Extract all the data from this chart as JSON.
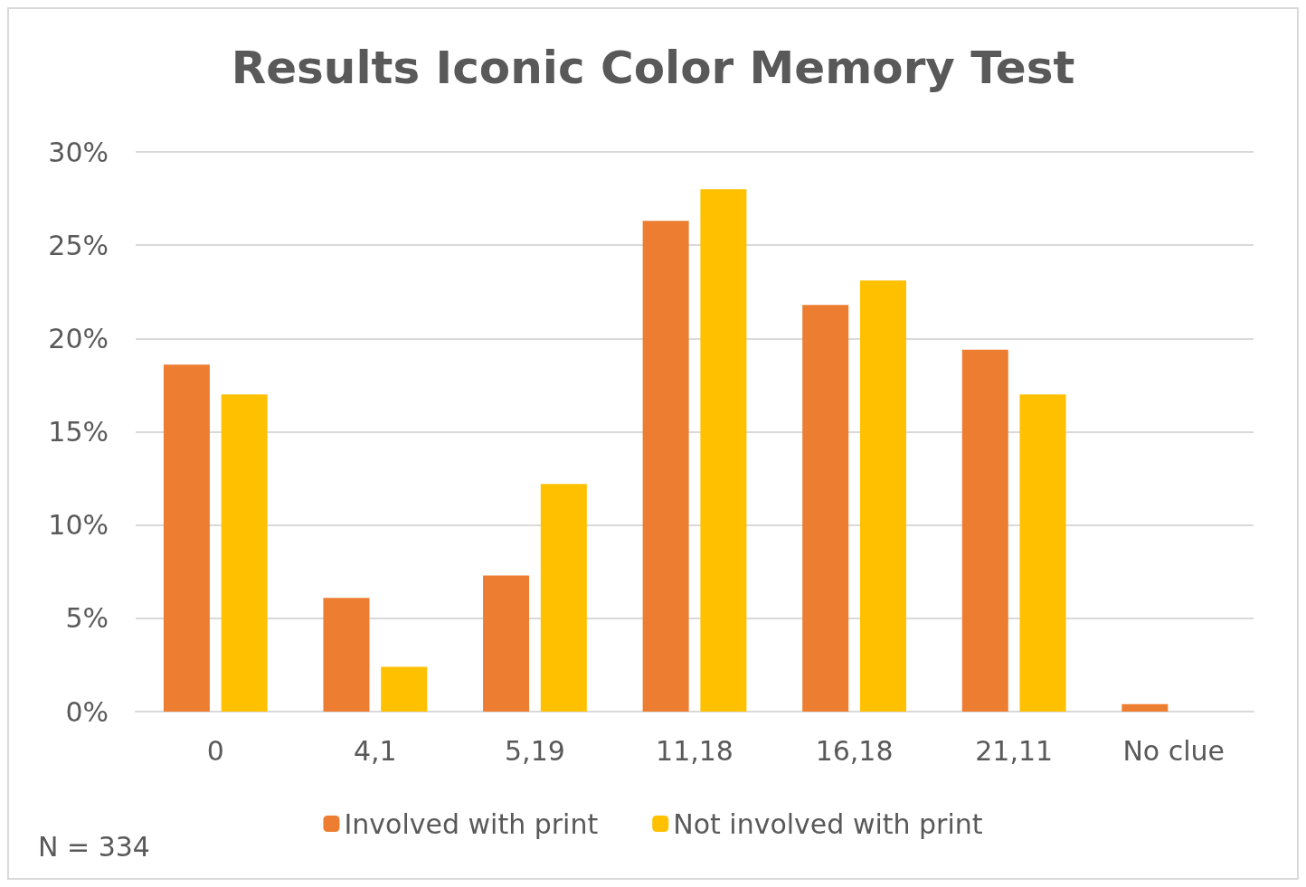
{
  "chart_data": {
    "type": "bar",
    "title": "Results Iconic Color Memory Test",
    "categories": [
      "0",
      "4,1",
      "5,19",
      "11,18",
      "16,18",
      "21,11",
      "No clue"
    ],
    "series": [
      {
        "name": "Involved with print",
        "color": "#ed7d31",
        "values": [
          18.6,
          6.1,
          7.3,
          26.3,
          21.8,
          19.4,
          0.4
        ]
      },
      {
        "name": "Not involved with print",
        "color": "#ffc000",
        "values": [
          17.0,
          2.4,
          12.2,
          28.0,
          23.1,
          17.0,
          0
        ]
      }
    ],
    "ylim": [
      0,
      30
    ],
    "yticks": [
      {
        "value": 0,
        "label": "0%"
      },
      {
        "value": 5,
        "label": "5%"
      },
      {
        "value": 10,
        "label": "10%"
      },
      {
        "value": 15,
        "label": "15%"
      },
      {
        "value": 20,
        "label": "20%"
      },
      {
        "value": 25,
        "label": "25%"
      },
      {
        "value": 30,
        "label": "30%"
      }
    ],
    "grid": "y",
    "legend": "bottom",
    "annotations": [
      "N = 334"
    ]
  }
}
